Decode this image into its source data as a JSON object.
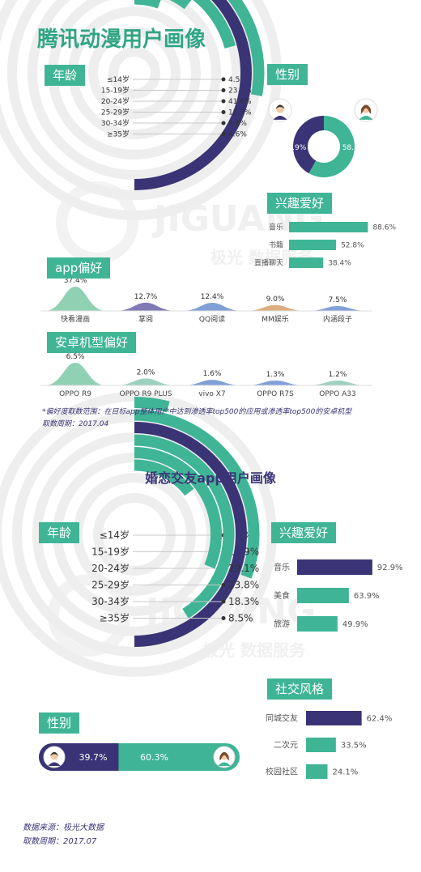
{
  "section1": {
    "title": "腾讯动漫用户画像",
    "age_tag": "年龄",
    "gender_tag": "性别",
    "interest_tag": "兴趣爱好",
    "app_tag": "app偏好",
    "phone_tag": "安卓机型偏好",
    "note_line1": "*偏好度取数范围：在目标app整体用户中达到渗透率top500的应用或渗透率top500的安卓机型",
    "note_line2": "取数周期：2017.04"
  },
  "section2": {
    "title": "婚恋交友app用户画像",
    "age_tag": "年龄",
    "interest_tag": "兴趣爱好",
    "social_tag": "社交风格",
    "gender_tag": "性别",
    "source_line1": "数据来源：极光大数据",
    "source_line2": "取数周期：2017.07"
  },
  "watermark": {
    "brand": "JIGUANG",
    "sub": "极光 数据服务"
  },
  "colors": {
    "green": "#3fb596",
    "purple": "#3a3476",
    "gray": "#eeeeee"
  },
  "chart_data": [
    {
      "id": "comic_age",
      "type": "radial_bar",
      "title": "年龄",
      "categories": [
        "≤14岁",
        "15-19岁",
        "20-24岁",
        "25-29岁",
        "30-34岁",
        "≥35岁"
      ],
      "values": [
        4.5,
        23.2,
        41.6,
        17.3,
        8.8,
        4.6
      ],
      "labels": [
        "4.5%",
        "23.2%",
        "41.6%",
        "17.3%",
        "8.8%",
        "4.6%"
      ],
      "highlight_index": 2
    },
    {
      "id": "comic_gender",
      "type": "pie",
      "title": "性别",
      "categories": [
        "男",
        "女"
      ],
      "icons": [
        "male-avatar-icon",
        "female-avatar-icon"
      ],
      "values": [
        41.9,
        58.1
      ],
      "labels": [
        "41.9%",
        "58.1%"
      ]
    },
    {
      "id": "comic_interest",
      "type": "bar",
      "title": "兴趣爱好",
      "categories": [
        "音乐",
        "书籍",
        "直播聊天"
      ],
      "values": [
        88.6,
        52.8,
        38.4
      ],
      "labels": [
        "88.6%",
        "52.8%",
        "38.4%"
      ]
    },
    {
      "id": "comic_app",
      "type": "area",
      "title": "app偏好",
      "categories": [
        "快看漫画",
        "掌阅",
        "QQ阅读",
        "MM娱乐",
        "内涵段子"
      ],
      "values": [
        37.4,
        12.7,
        12.4,
        9.0,
        7.5
      ],
      "labels": [
        "37.4%",
        "12.7%",
        "12.4%",
        "9.0%",
        "7.5%"
      ]
    },
    {
      "id": "comic_phone",
      "type": "area",
      "title": "安卓机型偏好",
      "categories": [
        "OPPO R9",
        "OPPO R9 PLUS",
        "vivo X7",
        "OPPO R7S",
        "OPPO A33"
      ],
      "values": [
        6.5,
        2.0,
        1.6,
        1.3,
        1.2
      ],
      "labels": [
        "6.5%",
        "2.0%",
        "1.6%",
        "1.3%",
        "1.2%"
      ]
    },
    {
      "id": "dating_age",
      "type": "radial_bar",
      "title": "年龄",
      "categories": [
        "≤14岁",
        "15-19岁",
        "20-24岁",
        "25-29岁",
        "30-34岁",
        "≥35岁"
      ],
      "values": [
        2.4,
        17.9,
        29.1,
        23.8,
        18.3,
        8.5
      ],
      "labels": [
        "2.4%",
        "17.9%",
        "29.1%",
        "23.8%",
        "18.3%",
        "8.5%"
      ],
      "highlight_index": 2
    },
    {
      "id": "dating_interest",
      "type": "bar",
      "title": "兴趣爱好",
      "categories": [
        "音乐",
        "美食",
        "旅游"
      ],
      "values": [
        92.9,
        63.9,
        49.9
      ],
      "labels": [
        "92.9%",
        "63.9%",
        "49.9%"
      ]
    },
    {
      "id": "dating_social",
      "type": "bar",
      "title": "社交风格",
      "categories": [
        "同城交友",
        "二次元",
        "校园社区"
      ],
      "values": [
        62.4,
        33.5,
        24.1
      ],
      "labels": [
        "62.4%",
        "33.5%",
        "24.1%"
      ]
    },
    {
      "id": "dating_gender",
      "type": "bar",
      "title": "性别",
      "categories": [
        "男",
        "女"
      ],
      "icons": [
        "male-avatar-icon",
        "female-avatar-icon"
      ],
      "values": [
        39.7,
        60.3
      ],
      "labels": [
        "39.7%",
        "60.3%"
      ]
    }
  ]
}
